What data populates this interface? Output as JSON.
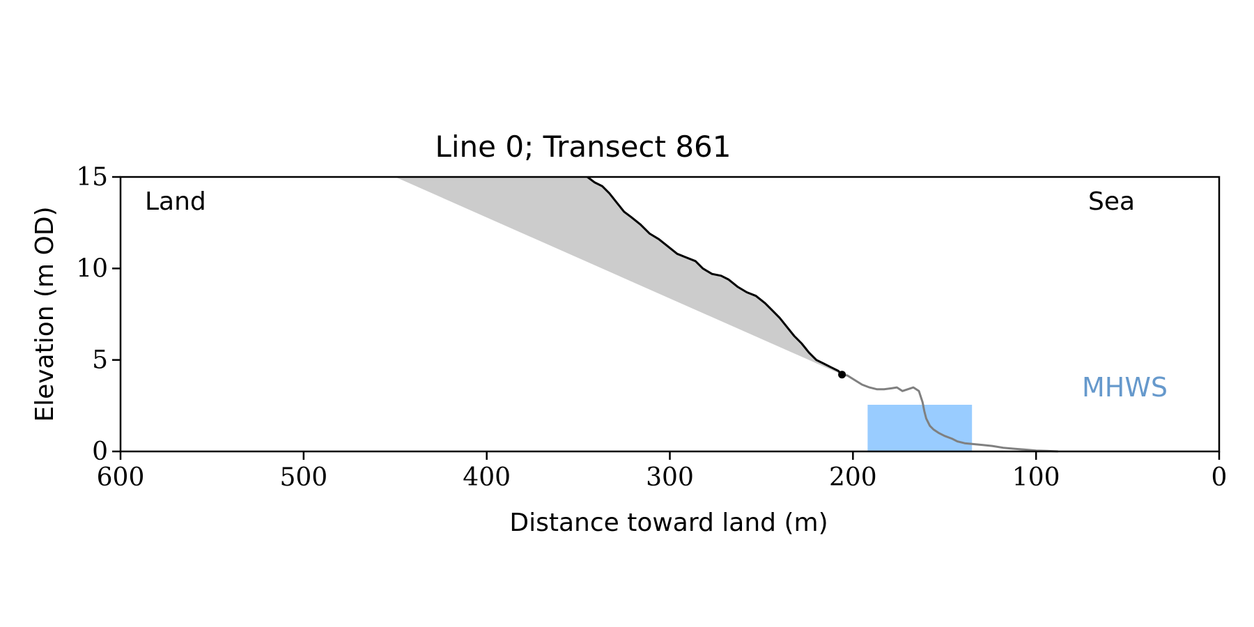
{
  "chart_data": {
    "type": "line",
    "title": "Line 0; Transect 861",
    "xlabel": "Distance toward land (m)",
    "ylabel": "Elevation (m OD)",
    "xlim": [
      600,
      0
    ],
    "ylim": [
      0,
      15
    ],
    "x_ticks": [
      600,
      500,
      400,
      300,
      200,
      100,
      0
    ],
    "y_ticks": [
      0,
      5,
      10,
      15
    ],
    "grid": false,
    "legend": "none",
    "annotations": {
      "land_label": "Land",
      "sea_label": "Sea",
      "mhws_label": "MHWS"
    },
    "colors": {
      "cliff_line": "#000000",
      "foreshore_line": "#808080",
      "fill": "#cccccc",
      "water": "#99ccff",
      "mhws_text": "#6699cc"
    },
    "series": [
      {
        "role": "cliff profile",
        "points": [
          [
            345,
            15.0
          ],
          [
            341,
            14.7
          ],
          [
            337,
            14.5
          ],
          [
            333,
            14.1
          ],
          [
            329,
            13.6
          ],
          [
            325,
            13.1
          ],
          [
            321,
            12.8
          ],
          [
            316,
            12.4
          ],
          [
            311,
            11.9
          ],
          [
            306,
            11.6
          ],
          [
            301,
            11.2
          ],
          [
            296,
            10.8
          ],
          [
            291,
            10.6
          ],
          [
            286,
            10.4
          ],
          [
            282,
            10.0
          ],
          [
            277,
            9.7
          ],
          [
            272,
            9.6
          ],
          [
            268,
            9.4
          ],
          [
            263,
            9.0
          ],
          [
            258,
            8.7
          ],
          [
            253,
            8.5
          ],
          [
            248,
            8.1
          ],
          [
            244,
            7.7
          ],
          [
            240,
            7.3
          ],
          [
            236,
            6.8
          ],
          [
            232,
            6.3
          ],
          [
            228,
            5.9
          ],
          [
            224,
            5.4
          ],
          [
            220,
            5.0
          ],
          [
            216,
            4.8
          ],
          [
            212,
            4.6
          ],
          [
            208,
            4.4
          ],
          [
            206,
            4.2
          ]
        ]
      },
      {
        "role": "foreshore profile",
        "points": [
          [
            206,
            4.2
          ],
          [
            203,
            4.15
          ],
          [
            199,
            3.9
          ],
          [
            195,
            3.65
          ],
          [
            191,
            3.5
          ],
          [
            187,
            3.4
          ],
          [
            183,
            3.4
          ],
          [
            179,
            3.45
          ],
          [
            176,
            3.5
          ],
          [
            173,
            3.3
          ],
          [
            170,
            3.4
          ],
          [
            167,
            3.5
          ],
          [
            164,
            3.3
          ],
          [
            162,
            2.7
          ],
          [
            161,
            2.2
          ],
          [
            160,
            1.8
          ],
          [
            158,
            1.4
          ],
          [
            156,
            1.2
          ],
          [
            153,
            1.0
          ],
          [
            150,
            0.85
          ],
          [
            146,
            0.7
          ],
          [
            143,
            0.55
          ],
          [
            139,
            0.45
          ],
          [
            134,
            0.4
          ],
          [
            129,
            0.35
          ],
          [
            124,
            0.3
          ],
          [
            118,
            0.2
          ],
          [
            112,
            0.15
          ],
          [
            106,
            0.1
          ],
          [
            100,
            0.05
          ],
          [
            94,
            0.03
          ],
          [
            88,
            0.0
          ]
        ]
      },
      {
        "role": "shaded wedge",
        "points": [
          [
            450,
            15.0
          ],
          [
            345,
            15.0
          ],
          [
            206,
            4.2
          ]
        ]
      }
    ],
    "cliff_toe_marker": [
      206,
      4.2
    ],
    "water_level": {
      "x_range": [
        192,
        135
      ],
      "level": 2.55
    }
  }
}
